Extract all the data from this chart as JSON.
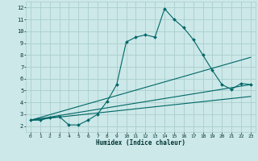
{
  "xlabel": "Humidex (Indice chaleur)",
  "bg_color": "#cce8e8",
  "grid_color": "#aacece",
  "line_color": "#006666",
  "xlim": [
    -0.5,
    23.5
  ],
  "ylim": [
    1.5,
    12.5
  ],
  "xticks": [
    0,
    1,
    2,
    3,
    4,
    5,
    6,
    7,
    8,
    9,
    10,
    11,
    12,
    13,
    14,
    15,
    16,
    17,
    18,
    19,
    20,
    21,
    22,
    23
  ],
  "yticks": [
    2,
    3,
    4,
    5,
    6,
    7,
    8,
    9,
    10,
    11,
    12
  ],
  "series1_x": [
    0,
    1,
    2,
    3,
    4,
    5,
    6,
    7,
    8,
    9,
    10,
    11,
    12,
    13,
    14,
    15,
    16,
    17,
    18,
    19,
    20,
    21,
    22,
    23
  ],
  "series1_y": [
    2.5,
    2.5,
    2.7,
    2.8,
    2.1,
    2.1,
    2.5,
    3.0,
    4.1,
    5.5,
    9.1,
    9.5,
    9.7,
    9.5,
    11.9,
    11.0,
    10.3,
    9.3,
    8.0,
    6.7,
    5.5,
    5.1,
    5.6,
    5.5
  ],
  "series2_x": [
    0,
    23
  ],
  "series2_y": [
    2.5,
    7.8
  ],
  "series3_x": [
    0,
    23
  ],
  "series3_y": [
    2.5,
    5.5
  ],
  "series4_x": [
    0,
    23
  ],
  "series4_y": [
    2.5,
    4.5
  ]
}
